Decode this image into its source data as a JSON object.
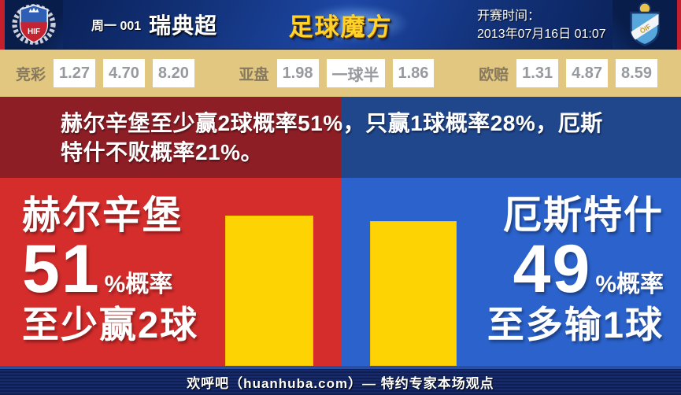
{
  "header": {
    "match_label": "周一 001",
    "league": "瑞典超",
    "logo_text": "足球魔方",
    "kickoff_label": "开赛时间：",
    "kickoff_time": "2013年07月16日 01:07",
    "home_badge_text": "HIF",
    "away_badge_text": "ÖIF"
  },
  "odds": {
    "jingcai": {
      "label": "竞彩",
      "values": [
        "1.27",
        "4.70",
        "8.20"
      ]
    },
    "yapan": {
      "label": "亚盘",
      "values": [
        "1.98",
        "一球半",
        "1.86"
      ]
    },
    "oupei": {
      "label": "欧赔",
      "values": [
        "1.31",
        "4.87",
        "8.59"
      ]
    }
  },
  "summary": "赫尔辛堡至少赢2球概率51%，只赢1球概率28%，厄斯特什不败概率21%。",
  "home": {
    "name": "赫尔辛堡",
    "probability": "51",
    "prob_suffix": "%概率",
    "outcome": "至少赢2球"
  },
  "away": {
    "name": "厄斯特什",
    "probability": "49",
    "prob_suffix": "%概率",
    "outcome": "至多输1球"
  },
  "footer": {
    "text": "欢呼吧（huanhuba.com）— 特约专家本场观点"
  },
  "colors": {
    "accent_red": "#c41f2c",
    "panel_red": "#d42d2c",
    "panel_blue": "#2b62cb",
    "banner_red": "#8e1e26",
    "banner_blue": "#20468c",
    "bar_yellow": "#fdd303",
    "odds_bg": "#e2c780",
    "logo_gold": "#ffd329"
  },
  "chart_data": {
    "type": "bar",
    "categories": [
      "赫尔辛堡",
      "厄斯特什"
    ],
    "values": [
      51,
      49
    ],
    "annotations": [
      "至少赢2球",
      "至多输1球"
    ],
    "bar_color": "#fdd303",
    "ylim": [
      0,
      100
    ],
    "legend": "none",
    "grid": false
  }
}
